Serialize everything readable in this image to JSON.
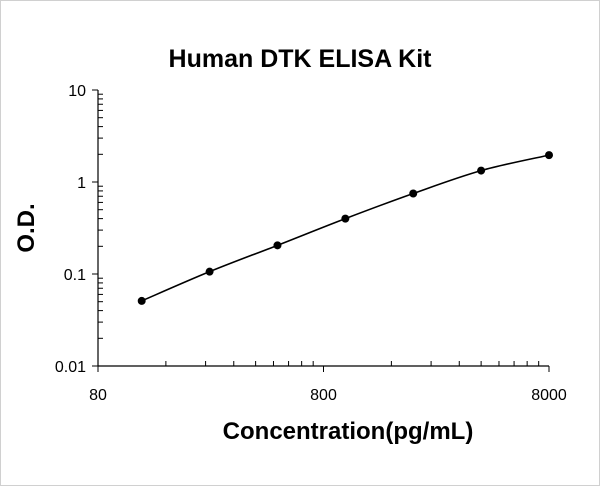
{
  "chart_data": {
    "type": "scatter",
    "title": "Human DTK ELISA Kit",
    "xlabel": "Concentration(pg/mL)",
    "ylabel": "O.D.",
    "x_scale": "log",
    "y_scale": "log",
    "xlim": [
      80,
      8000
    ],
    "ylim": [
      0.01,
      10
    ],
    "x_ticks": [
      80,
      800,
      8000
    ],
    "y_ticks": [
      0.01,
      0.1,
      1,
      10
    ],
    "x_tick_labels": [
      "80",
      "800",
      "8000"
    ],
    "y_tick_labels": [
      "0.01",
      "0.1",
      "1",
      "10"
    ],
    "grid": false,
    "legend": "none",
    "line_color": "#000000",
    "series": [
      {
        "x": [
          125,
          250,
          500,
          1000,
          2000,
          4000,
          8000
        ],
        "y": [
          0.051,
          0.106,
          0.205,
          0.4,
          0.75,
          1.33,
          1.96
        ]
      }
    ]
  }
}
